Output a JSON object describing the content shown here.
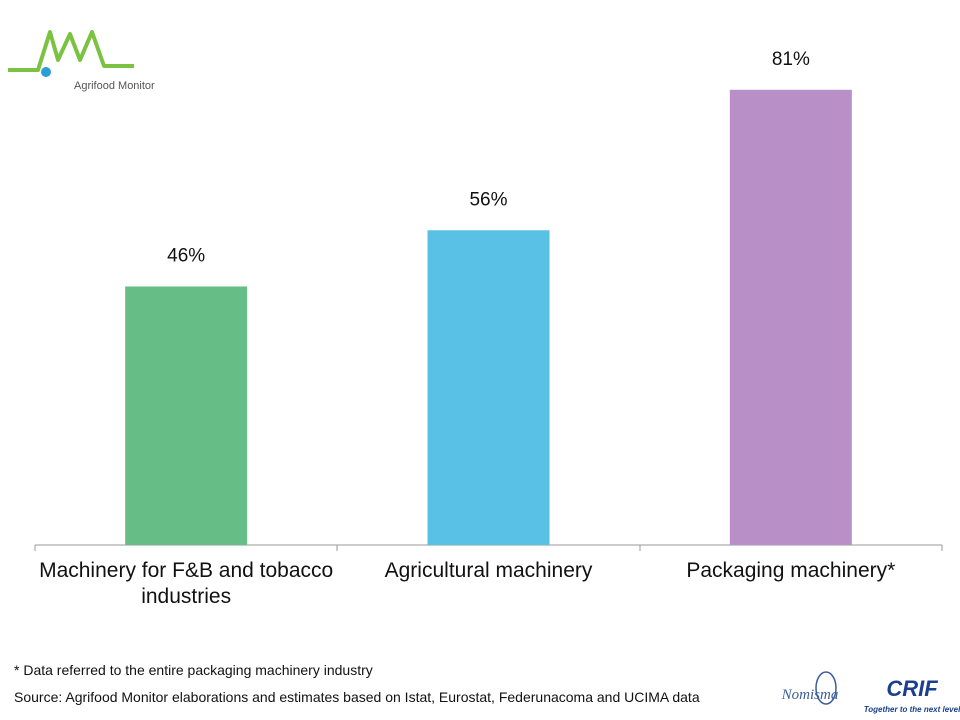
{
  "chart_data": {
    "type": "bar",
    "categories": [
      "Machinery for F&B and tobacco industries",
      "Agricultural machinery",
      "Packaging machinery*"
    ],
    "values": [
      46,
      56,
      81
    ],
    "value_labels": [
      "46%",
      "56%",
      "81%"
    ],
    "colors": [
      "#66bd86",
      "#59c1e6",
      "#b88fc6"
    ]
  },
  "footnote": "* Data referred  to the entire packaging machinery industry",
  "source": "Source:  Agrifood Monitor elaborations and estimates based on Istat, Eurostat, Federunacoma and UCIMA data",
  "logos": {
    "agrifood": "Agrifood Monitor",
    "nomisma": "Nomisma",
    "crif": "CRIF",
    "crif_tagline": "Together to the next level"
  }
}
